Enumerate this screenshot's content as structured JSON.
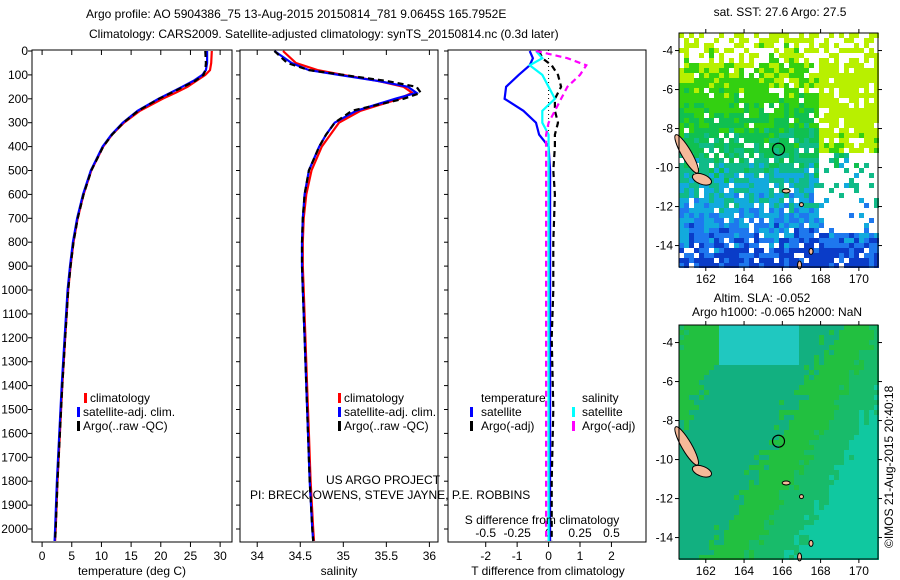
{
  "title": {
    "line1": "Argo profile: AO 5904386_75 13-Aug-2015 20150814_781 9.0645S 165.7952E",
    "line2": "Climatology: CARS2009. Satellite-adjusted climatology: synTS_20150814.nc (0.3d later)"
  },
  "credits": {
    "project": "US ARGO PROJECT",
    "pi": "PI: BRECK OWENS, STEVE JAYNE, P.E. ROBBINS",
    "copyright": "©IMOS 21-Aug-2015 20:40:18"
  },
  "colors": {
    "climatology": "#ff0000",
    "satellite": "#0000ff",
    "argo": "#000000",
    "sal_satellite": "#00ffff",
    "sal_argo": "#ff00ff",
    "land": "#f5b999"
  },
  "chart_data": [
    {
      "type": "line",
      "id": "temperature",
      "xlabel": "temperature (deg C)",
      "ylabel": "depth",
      "xlim": [
        -1.7,
        32
      ],
      "ylim": [
        2050,
        0
      ],
      "xticks": [
        0,
        5,
        10,
        15,
        20,
        25,
        30
      ],
      "yticks": [
        0,
        100,
        200,
        300,
        400,
        500,
        600,
        700,
        800,
        900,
        1000,
        1100,
        1200,
        1300,
        1400,
        1500,
        1600,
        1700,
        1800,
        1900,
        2000
      ],
      "legend": [
        "climatology",
        "satellite-adj. clim.",
        "Argo(..raw -QC)"
      ],
      "depth": [
        0,
        50,
        80,
        100,
        125,
        150,
        175,
        200,
        250,
        300,
        350,
        400,
        500,
        600,
        700,
        800,
        900,
        1000,
        1200,
        1400,
        1600,
        1800,
        2000,
        2050
      ],
      "series": [
        {
          "name": "climatology",
          "values": [
            28.6,
            28.5,
            28.3,
            27.5,
            26,
            24.5,
            22.5,
            20.3,
            16.5,
            13.8,
            11.8,
            10.3,
            8.3,
            7.0,
            6.0,
            5.3,
            4.8,
            4.4,
            3.9,
            3.4,
            3.0,
            2.6,
            2.3,
            2.2
          ]
        },
        {
          "name": "satellite-adj. clim.",
          "values": [
            27.8,
            27.8,
            27.6,
            27.0,
            25.5,
            23.6,
            21.6,
            19.6,
            16.1,
            13.6,
            11.7,
            10.2,
            8.2,
            6.9,
            5.9,
            5.2,
            4.7,
            4.3,
            3.8,
            3.3,
            2.9,
            2.5,
            2.2,
            2.1
          ]
        },
        {
          "name": "Argo(..raw -QC)",
          "values": [
            27.5,
            27.6,
            27.5,
            27.2,
            25.8,
            23.8,
            21.8,
            19.7,
            16.2,
            13.7,
            11.8,
            10.3,
            8.3,
            7.0,
            6.0,
            5.3,
            4.8,
            4.4,
            3.9,
            3.4,
            3.0,
            2.6,
            2.3,
            2.2
          ]
        }
      ]
    },
    {
      "type": "line",
      "id": "salinity",
      "xlabel": "salinity",
      "xlim": [
        33.8,
        36.1
      ],
      "ylim": [
        2050,
        0
      ],
      "xticks": [
        34,
        34.5,
        35,
        35.5,
        36
      ],
      "legend": [
        "climatology",
        "satellite-adj. clim.",
        "Argo(..raw -QC)"
      ],
      "depth": [
        0,
        50,
        80,
        100,
        125,
        150,
        175,
        200,
        250,
        300,
        350,
        400,
        500,
        600,
        700,
        800,
        900,
        1000,
        1200,
        1400,
        1600,
        1800,
        2000,
        2050
      ],
      "series": [
        {
          "name": "climatology",
          "values": [
            34.3,
            34.45,
            34.7,
            35.0,
            35.4,
            35.7,
            35.8,
            35.65,
            35.2,
            34.95,
            34.85,
            34.75,
            34.63,
            34.57,
            34.54,
            34.53,
            34.53,
            34.54,
            34.56,
            34.58,
            34.6,
            34.62,
            34.65,
            34.66
          ]
        },
        {
          "name": "satellite-adj. clim.",
          "values": [
            34.2,
            34.4,
            34.6,
            34.95,
            35.4,
            35.75,
            35.85,
            35.6,
            35.15,
            34.9,
            34.8,
            34.72,
            34.6,
            34.55,
            34.53,
            34.52,
            34.52,
            34.53,
            34.55,
            34.57,
            34.59,
            34.61,
            34.64,
            34.65
          ]
        },
        {
          "name": "Argo(..raw -QC)",
          "values": [
            34.2,
            34.35,
            34.6,
            35.0,
            35.5,
            35.85,
            35.9,
            35.7,
            35.1,
            34.9,
            34.8,
            34.72,
            34.6,
            34.55,
            34.53,
            34.52,
            34.52,
            34.53,
            34.55,
            34.57,
            34.59,
            34.61,
            34.64,
            34.65
          ]
        }
      ]
    },
    {
      "type": "line",
      "id": "difference",
      "xlabel": "T difference from climatology",
      "x2label": "S difference from climatology",
      "xlim": [
        -3.2,
        3.1
      ],
      "x2lim": [
        -0.8,
        0.775
      ],
      "ylim": [
        2050,
        0
      ],
      "xticks": [
        -2,
        -1,
        0,
        1,
        2
      ],
      "x2ticks": [
        "-0.5",
        "-0.25",
        "0",
        "0.25",
        "0.5"
      ],
      "x2tick_values": [
        -0.5,
        -0.25,
        0,
        0.25,
        0.5
      ],
      "legend_headers": [
        "temperature",
        "salinity"
      ],
      "legend": [
        "satellite",
        "Argo(-adj)",
        "satellite",
        "Argo(-adj)"
      ],
      "depth": [
        0,
        30,
        60,
        100,
        150,
        200,
        250,
        300,
        350,
        400,
        500,
        600,
        800,
        1000,
        1200,
        1500,
        1800,
        2050
      ],
      "series": [
        {
          "name": "T satellite",
          "axis": "T",
          "values": [
            -0.6,
            -0.5,
            -0.6,
            -0.95,
            -1.35,
            -1.4,
            -0.8,
            -0.4,
            -0.3,
            0.0,
            0.05,
            0.05,
            0.05,
            0.05,
            0.05,
            0.05,
            0.05,
            0.05
          ]
        },
        {
          "name": "T Argo(-adj)",
          "axis": "T",
          "values": [
            -0.3,
            -0.2,
            0.1,
            0.3,
            0.4,
            0.2,
            0.2,
            0.3,
            0.2,
            0.2,
            0.15,
            0.2,
            0.15,
            0.15,
            0.1,
            0.15,
            0.1,
            0.1
          ]
        },
        {
          "name": "S satellite",
          "axis": "S",
          "values": [
            -0.1,
            -0.05,
            -0.15,
            -0.05,
            0.0,
            0.05,
            -0.05,
            -0.05,
            0.0,
            0.0,
            0.0,
            0.0,
            0.0,
            0.0,
            0.0,
            0.0,
            0.0,
            0.0
          ]
        },
        {
          "name": "S Argo(-adj)",
          "axis": "S",
          "values": [
            -0.1,
            0.15,
            0.3,
            0.25,
            0.15,
            0.1,
            0.05,
            0.0,
            -0.02,
            -0.02,
            -0.02,
            -0.02,
            -0.02,
            -0.02,
            -0.02,
            -0.02,
            -0.02,
            -0.02
          ]
        }
      ]
    },
    {
      "type": "heatmap",
      "id": "sst-map",
      "title": "sat. SST: 27.6 Argo: 27.5",
      "xlim": [
        160.6,
        171.0
      ],
      "ylim": [
        -15.1,
        -3.1
      ],
      "xticks": [
        162,
        164,
        166,
        168,
        170
      ],
      "yticks": [
        -4,
        -6,
        -8,
        -10,
        -12,
        -14
      ],
      "argo_position": [
        165.8,
        -9.06
      ]
    },
    {
      "type": "heatmap",
      "id": "sla-map",
      "title": "Altim. SLA: -0.052",
      "subtitle": "Argo h1000: -0.065 h2000: NaN",
      "xlim": [
        160.6,
        171.0
      ],
      "ylim": [
        -15.1,
        -3.1
      ],
      "xticks": [
        162,
        164,
        166,
        168,
        170
      ],
      "yticks": [
        -4,
        -6,
        -8,
        -10,
        -12,
        -14
      ],
      "argo_position": [
        165.8,
        -9.06
      ]
    }
  ]
}
